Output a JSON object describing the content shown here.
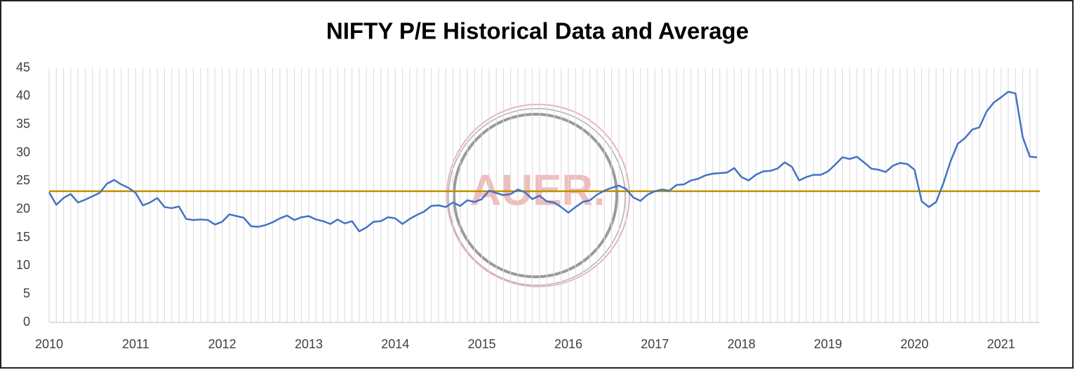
{
  "chart_data": {
    "type": "line",
    "title": "NIFTY P/E Historical Data and Average",
    "watermark": "AUER.",
    "categories": [
      "2010",
      null,
      null,
      null,
      null,
      null,
      null,
      null,
      null,
      null,
      null,
      null,
      "2011",
      null,
      null,
      null,
      null,
      null,
      null,
      null,
      null,
      null,
      null,
      null,
      "2012",
      null,
      null,
      null,
      null,
      null,
      null,
      null,
      null,
      null,
      null,
      null,
      "2013",
      null,
      null,
      null,
      null,
      null,
      null,
      null,
      null,
      null,
      null,
      null,
      "2014",
      null,
      null,
      null,
      null,
      null,
      null,
      null,
      null,
      null,
      null,
      null,
      "2015",
      null,
      null,
      null,
      null,
      null,
      null,
      null,
      null,
      null,
      null,
      null,
      "2016",
      null,
      null,
      null,
      null,
      null,
      null,
      null,
      null,
      null,
      null,
      null,
      "2017",
      null,
      null,
      null,
      null,
      null,
      null,
      null,
      null,
      null,
      null,
      null,
      "2018",
      null,
      null,
      null,
      null,
      null,
      null,
      null,
      null,
      null,
      null,
      null,
      "2019",
      null,
      null,
      null,
      null,
      null,
      null,
      null,
      null,
      null,
      null,
      null,
      "2020",
      null,
      null,
      null,
      null,
      null,
      null,
      null,
      null,
      null,
      null,
      null,
      "2021",
      null,
      null,
      null,
      null,
      null
    ],
    "values": [
      23.0,
      20.8,
      22.0,
      22.7,
      21.2,
      21.7,
      22.3,
      22.9,
      24.5,
      25.2,
      24.4,
      23.8,
      22.9,
      20.7,
      21.2,
      22.0,
      20.4,
      20.2,
      20.5,
      18.3,
      18.1,
      18.2,
      18.1,
      17.3,
      17.8,
      19.1,
      18.8,
      18.5,
      17.0,
      16.9,
      17.2,
      17.7,
      18.4,
      18.9,
      18.1,
      18.6,
      18.8,
      18.2,
      17.9,
      17.4,
      18.2,
      17.5,
      17.9,
      16.1,
      16.8,
      17.8,
      17.9,
      18.6,
      18.4,
      17.4,
      18.3,
      19.0,
      19.6,
      20.6,
      20.7,
      20.4,
      21.2,
      20.6,
      21.6,
      21.3,
      21.8,
      23.3,
      22.9,
      22.5,
      22.7,
      23.5,
      23.0,
      21.8,
      22.4,
      21.4,
      21.2,
      20.4,
      19.4,
      20.4,
      21.3,
      21.6,
      22.6,
      23.3,
      23.8,
      24.2,
      23.6,
      22.1,
      21.5,
      22.6,
      23.2,
      23.5,
      23.3,
      24.3,
      24.4,
      25.1,
      25.4,
      26.0,
      26.3,
      26.4,
      26.5,
      27.3,
      25.7,
      25.1,
      26.1,
      26.7,
      26.8,
      27.2,
      28.3,
      27.5,
      25.1,
      25.7,
      26.1,
      26.1,
      26.7,
      27.9,
      29.2,
      28.9,
      29.3,
      28.3,
      27.2,
      27.0,
      26.6,
      27.7,
      28.2,
      28.0,
      27.0,
      21.4,
      20.4,
      21.3,
      24.6,
      28.5,
      31.6,
      32.6,
      34.1,
      34.5,
      37.3,
      38.9,
      39.8,
      40.8,
      40.5,
      32.8,
      29.3,
      29.2
    ],
    "color": "#4472c4",
    "average": 23.2,
    "average_color": "#bf9000",
    "ylim": [
      0,
      45
    ],
    "yticks": [
      0,
      5,
      10,
      15,
      20,
      25,
      30,
      35,
      40,
      45
    ],
    "grid": true
  }
}
